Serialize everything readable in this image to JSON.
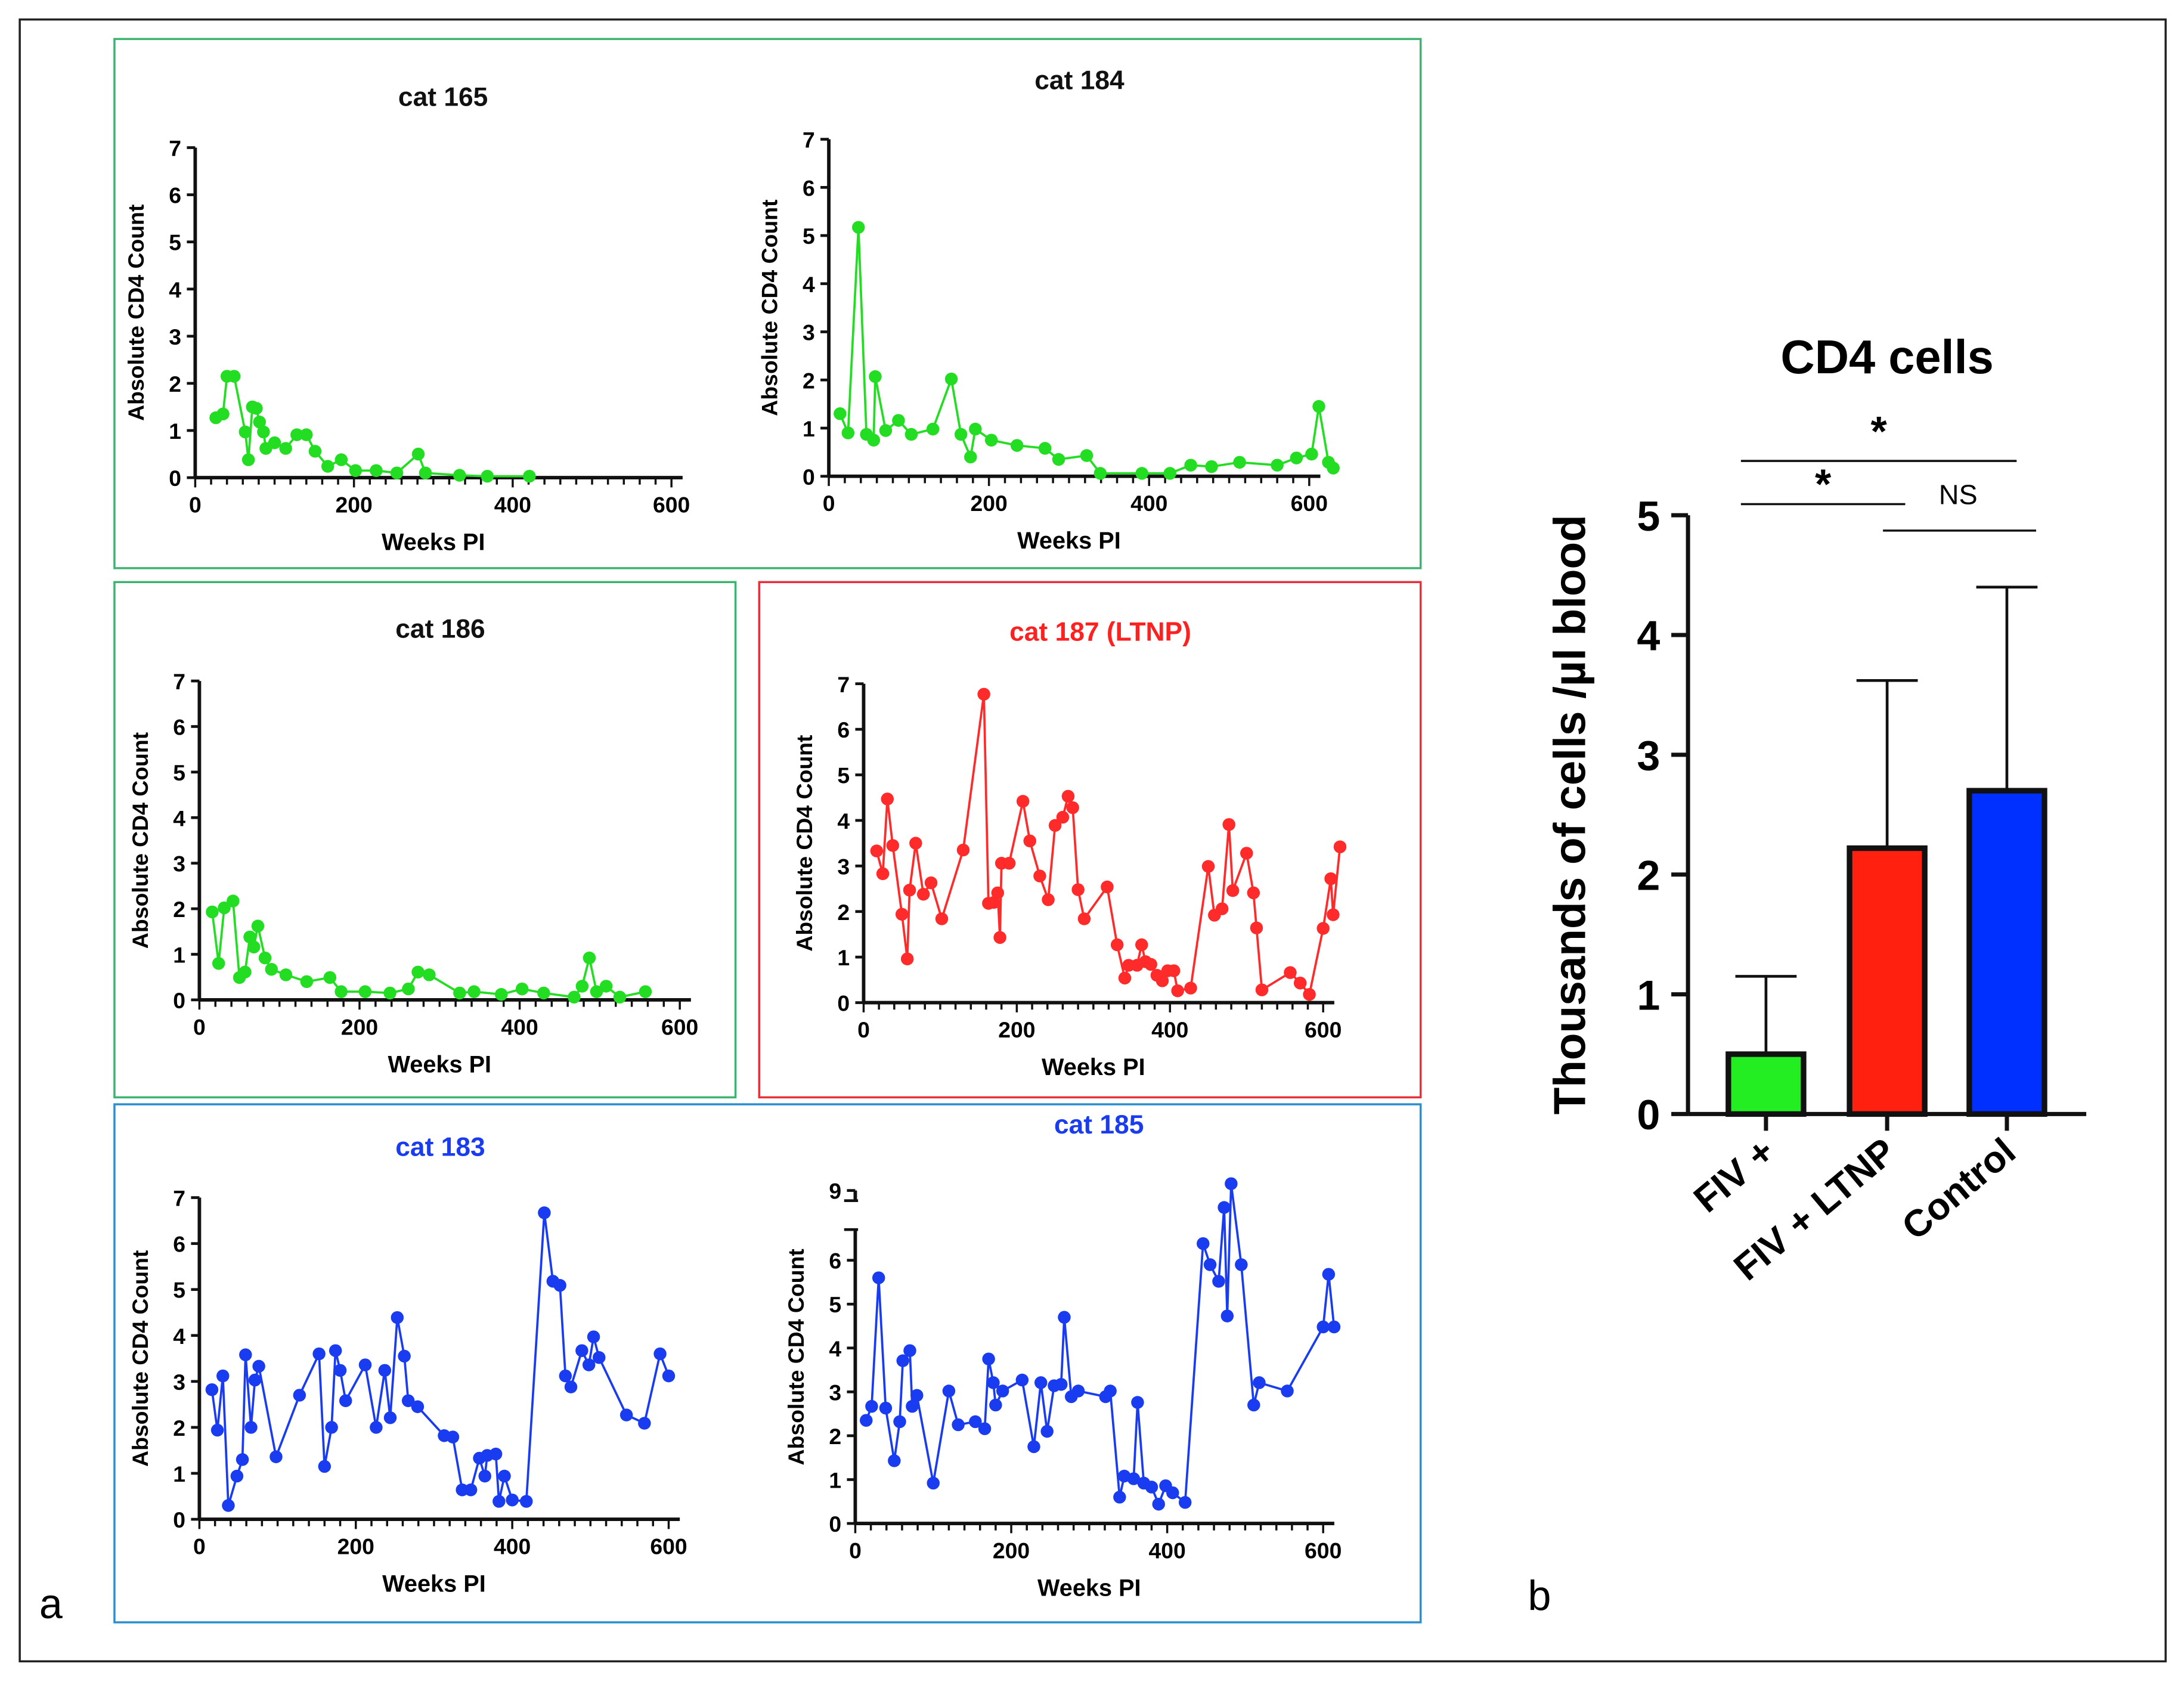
{
  "panel_labels": {
    "a": "a",
    "b": "b"
  },
  "colors": {
    "green_frame": "#3cb371",
    "red_frame": "#e8303a",
    "blue_frame": "#2a8fd0"
  },
  "chart_data": [
    {
      "id": "cat165",
      "type": "line",
      "title": "cat 165",
      "title_color": "#111111",
      "color": "#22dd22",
      "xlabel": "Weeks PI",
      "ylabel": "Absolute CD4 Count",
      "xlim": [
        0,
        600
      ],
      "ylim": [
        0,
        7
      ],
      "xticks": [
        0,
        200,
        400,
        600
      ],
      "yticks": [
        0,
        1,
        2,
        3,
        4,
        5,
        6,
        7
      ],
      "points": [
        [
          26,
          1.27
        ],
        [
          35,
          1.35
        ],
        [
          40,
          2.15
        ],
        [
          49,
          2.15
        ],
        [
          63,
          0.97
        ],
        [
          67,
          0.38
        ],
        [
          72,
          1.5
        ],
        [
          77,
          1.47
        ],
        [
          81,
          1.18
        ],
        [
          86,
          0.97
        ],
        [
          89,
          0.62
        ],
        [
          100,
          0.74
        ],
        [
          114,
          0.62
        ],
        [
          128,
          0.91
        ],
        [
          140,
          0.91
        ],
        [
          151,
          0.56
        ],
        [
          167,
          0.24
        ],
        [
          184,
          0.38
        ],
        [
          202,
          0.15
        ],
        [
          228,
          0.15
        ],
        [
          254,
          0.1
        ],
        [
          281,
          0.5
        ],
        [
          290,
          0.1
        ],
        [
          333,
          0.05
        ],
        [
          368,
          0.03
        ],
        [
          421,
          0.03
        ]
      ]
    },
    {
      "id": "cat184",
      "type": "line",
      "title": "cat 184",
      "title_color": "#111111",
      "color": "#22dd22",
      "xlabel": "Weeks PI",
      "ylabel": "Absolute CD4 Count",
      "xlim": [
        0,
        600
      ],
      "ylim": [
        0,
        7
      ],
      "xticks": [
        0,
        200,
        400,
        600
      ],
      "yticks": [
        0,
        1,
        2,
        3,
        4,
        5,
        6,
        7
      ],
      "points": [
        [
          14,
          1.3
        ],
        [
          24,
          0.9
        ],
        [
          37,
          5.17
        ],
        [
          47,
          0.87
        ],
        [
          56,
          0.75
        ],
        [
          58,
          2.07
        ],
        [
          71,
          0.95
        ],
        [
          87,
          1.16
        ],
        [
          103,
          0.87
        ],
        [
          130,
          0.98
        ],
        [
          153,
          2.02
        ],
        [
          165,
          0.87
        ],
        [
          177,
          0.4
        ],
        [
          183,
          0.98
        ],
        [
          203,
          0.75
        ],
        [
          235,
          0.64
        ],
        [
          270,
          0.58
        ],
        [
          287,
          0.35
        ],
        [
          322,
          0.43
        ],
        [
          339,
          0.06
        ],
        [
          391,
          0.06
        ],
        [
          426,
          0.06
        ],
        [
          452,
          0.23
        ],
        [
          478,
          0.2
        ],
        [
          513,
          0.29
        ],
        [
          560,
          0.23
        ],
        [
          584,
          0.38
        ],
        [
          603,
          0.46
        ],
        [
          612,
          1.45
        ],
        [
          624,
          0.29
        ],
        [
          630,
          0.17
        ]
      ]
    },
    {
      "id": "cat186",
      "type": "line",
      "title": "cat 186",
      "title_color": "#111111",
      "color": "#22dd22",
      "xlabel": "Weeks PI",
      "ylabel": "Absolute CD4 Count",
      "xlim": [
        0,
        600
      ],
      "ylim": [
        0,
        7
      ],
      "xticks": [
        0,
        200,
        400,
        600
      ],
      "yticks": [
        0,
        1,
        2,
        3,
        4,
        5,
        6,
        7
      ],
      "points": [
        [
          16,
          1.93
        ],
        [
          24,
          0.8
        ],
        [
          31,
          2.02
        ],
        [
          42,
          2.17
        ],
        [
          50,
          0.49
        ],
        [
          57,
          0.61
        ],
        [
          63,
          1.38
        ],
        [
          68,
          1.16
        ],
        [
          73,
          1.62
        ],
        [
          82,
          0.92
        ],
        [
          90,
          0.67
        ],
        [
          108,
          0.55
        ],
        [
          134,
          0.4
        ],
        [
          163,
          0.49
        ],
        [
          177,
          0.18
        ],
        [
          207,
          0.18
        ],
        [
          238,
          0.15
        ],
        [
          261,
          0.24
        ],
        [
          273,
          0.61
        ],
        [
          287,
          0.55
        ],
        [
          325,
          0.15
        ],
        [
          343,
          0.18
        ],
        [
          377,
          0.12
        ],
        [
          403,
          0.24
        ],
        [
          430,
          0.15
        ],
        [
          468,
          0.06
        ],
        [
          478,
          0.3
        ],
        [
          487,
          0.92
        ],
        [
          496,
          0.18
        ],
        [
          508,
          0.3
        ],
        [
          525,
          0.06
        ],
        [
          557,
          0.18
        ]
      ]
    },
    {
      "id": "cat187",
      "type": "line",
      "title": "cat 187 (LTNP)",
      "title_color": "#ff2020",
      "color": "#ff2a2a",
      "xlabel": "Weeks PI",
      "ylabel": "Absolute CD4 Count",
      "xlim": [
        0,
        600
      ],
      "ylim": [
        0,
        7
      ],
      "xticks": [
        0,
        200,
        400,
        600
      ],
      "yticks": [
        0,
        1,
        2,
        3,
        4,
        5,
        6,
        7
      ],
      "points": [
        [
          17,
          3.33
        ],
        [
          25,
          2.83
        ],
        [
          31,
          4.47
        ],
        [
          38,
          3.45
        ],
        [
          50,
          1.94
        ],
        [
          57,
          0.96
        ],
        [
          60,
          2.47
        ],
        [
          68,
          3.5
        ],
        [
          78,
          2.38
        ],
        [
          88,
          2.63
        ],
        [
          102,
          1.84
        ],
        [
          130,
          3.35
        ],
        [
          157,
          6.77
        ],
        [
          163,
          2.18
        ],
        [
          170,
          2.2
        ],
        [
          175,
          2.41
        ],
        [
          178,
          1.43
        ],
        [
          180,
          3.06
        ],
        [
          190,
          3.06
        ],
        [
          208,
          4.42
        ],
        [
          217,
          3.55
        ],
        [
          230,
          2.78
        ],
        [
          241,
          2.26
        ],
        [
          250,
          3.89
        ],
        [
          260,
          4.07
        ],
        [
          267,
          4.53
        ],
        [
          273,
          4.28
        ],
        [
          280,
          2.48
        ],
        [
          288,
          1.84
        ],
        [
          318,
          2.54
        ],
        [
          331,
          1.27
        ],
        [
          341,
          0.54
        ],
        [
          346,
          0.82
        ],
        [
          357,
          0.82
        ],
        [
          363,
          1.27
        ],
        [
          368,
          0.9
        ],
        [
          375,
          0.84
        ],
        [
          383,
          0.6
        ],
        [
          390,
          0.48
        ],
        [
          397,
          0.7
        ],
        [
          405,
          0.7
        ],
        [
          410,
          0.26
        ],
        [
          427,
          0.32
        ],
        [
          450,
          2.99
        ],
        [
          458,
          1.92
        ],
        [
          468,
          2.06
        ],
        [
          477,
          3.91
        ],
        [
          482,
          2.46
        ],
        [
          500,
          3.28
        ],
        [
          509,
          2.41
        ],
        [
          513,
          1.64
        ],
        [
          520,
          0.28
        ],
        [
          557,
          0.66
        ],
        [
          570,
          0.43
        ],
        [
          582,
          0.18
        ],
        [
          600,
          1.63
        ],
        [
          610,
          2.72
        ],
        [
          613,
          1.93
        ],
        [
          622,
          3.42
        ]
      ]
    },
    {
      "id": "cat183",
      "type": "line",
      "title": "cat 183",
      "title_color": "#1a3cf0",
      "color": "#1a3cf0",
      "xlabel": "Weeks PI",
      "ylabel": "Absolute CD4 Count",
      "xlim": [
        0,
        600
      ],
      "ylim": [
        0,
        7
      ],
      "xticks": [
        0,
        200,
        400,
        600
      ],
      "yticks": [
        0,
        1,
        2,
        3,
        4,
        5,
        6,
        7
      ],
      "points": [
        [
          16,
          2.82
        ],
        [
          23,
          1.94
        ],
        [
          30,
          3.12
        ],
        [
          37,
          0.3
        ],
        [
          48,
          0.94
        ],
        [
          55,
          1.3
        ],
        [
          59,
          3.58
        ],
        [
          66,
          2.0
        ],
        [
          71,
          3.03
        ],
        [
          76,
          3.33
        ],
        [
          98,
          1.36
        ],
        [
          128,
          2.7
        ],
        [
          153,
          3.6
        ],
        [
          160,
          1.15
        ],
        [
          169,
          2.0
        ],
        [
          174,
          3.67
        ],
        [
          180,
          3.24
        ],
        [
          187,
          2.58
        ],
        [
          212,
          3.36
        ],
        [
          226,
          2.0
        ],
        [
          237,
          3.24
        ],
        [
          244,
          2.21
        ],
        [
          253,
          4.39
        ],
        [
          262,
          3.55
        ],
        [
          267,
          2.58
        ],
        [
          279,
          2.45
        ],
        [
          313,
          1.82
        ],
        [
          324,
          1.79
        ],
        [
          336,
          0.64
        ],
        [
          347,
          0.64
        ],
        [
          358,
          1.33
        ],
        [
          365,
          0.94
        ],
        [
          368,
          1.39
        ],
        [
          379,
          1.42
        ],
        [
          383,
          0.39
        ],
        [
          390,
          0.94
        ],
        [
          400,
          0.42
        ],
        [
          418,
          0.39
        ],
        [
          441,
          6.67
        ],
        [
          452,
          5.18
        ],
        [
          461,
          5.09
        ],
        [
          468,
          3.12
        ],
        [
          475,
          2.88
        ],
        [
          489,
          3.67
        ],
        [
          498,
          3.36
        ],
        [
          504,
          3.97
        ],
        [
          511,
          3.52
        ],
        [
          546,
          2.27
        ],
        [
          569,
          2.09
        ],
        [
          589,
          3.6
        ],
        [
          600,
          3.12
        ]
      ]
    },
    {
      "id": "cat185",
      "type": "line",
      "title": "cat 185",
      "title_color": "#1a3cf0",
      "color": "#1a3cf0",
      "xlabel": "Weeks PI",
      "ylabel": "Absolute CD4 Count",
      "xlim": [
        0,
        600
      ],
      "ylim": [
        0,
        9.5
      ],
      "y_axis_break": true,
      "xticks": [
        0,
        200,
        400,
        600
      ],
      "yticks": [
        0,
        1,
        2,
        3,
        4,
        5,
        6,
        9
      ],
      "points": [
        [
          14,
          2.35
        ],
        [
          21,
          2.67
        ],
        [
          30,
          5.6
        ],
        [
          39,
          2.63
        ],
        [
          50,
          1.43
        ],
        [
          57,
          2.32
        ],
        [
          61,
          3.71
        ],
        [
          70,
          3.94
        ],
        [
          73,
          2.67
        ],
        [
          79,
          2.92
        ],
        [
          100,
          0.92
        ],
        [
          120,
          3.02
        ],
        [
          132,
          2.25
        ],
        [
          154,
          2.32
        ],
        [
          166,
          2.16
        ],
        [
          171,
          3.75
        ],
        [
          177,
          3.21
        ],
        [
          180,
          2.7
        ],
        [
          189,
          3.02
        ],
        [
          214,
          3.27
        ],
        [
          229,
          1.75
        ],
        [
          238,
          3.21
        ],
        [
          246,
          2.1
        ],
        [
          255,
          3.14
        ],
        [
          264,
          3.17
        ],
        [
          268,
          4.7
        ],
        [
          277,
          2.89
        ],
        [
          286,
          3.02
        ],
        [
          321,
          2.89
        ],
        [
          327,
          3.02
        ],
        [
          339,
          0.6
        ],
        [
          345,
          1.08
        ],
        [
          357,
          1.02
        ],
        [
          362,
          2.76
        ],
        [
          370,
          0.92
        ],
        [
          380,
          0.83
        ],
        [
          389,
          0.44
        ],
        [
          398,
          0.86
        ],
        [
          407,
          0.7
        ],
        [
          423,
          0.48
        ],
        [
          446,
          6.38
        ],
        [
          455,
          5.9
        ],
        [
          466,
          5.52
        ],
        [
          473,
          8.0
        ],
        [
          477,
          4.73
        ],
        [
          482,
          9.4
        ],
        [
          495,
          5.9
        ],
        [
          511,
          2.7
        ],
        [
          518,
          3.21
        ],
        [
          554,
          3.02
        ],
        [
          600,
          4.48
        ],
        [
          607,
          5.68
        ],
        [
          614,
          4.48
        ]
      ]
    },
    {
      "id": "cd4bar",
      "type": "bar",
      "title": "CD4 cells",
      "ylabel": "Thousands of cells /µl blood",
      "ylim": [
        0,
        5
      ],
      "yticks": [
        0,
        1,
        2,
        3,
        4,
        5
      ],
      "categories": [
        "FIV +",
        "FIV + LTNP",
        "Control"
      ],
      "values": [
        0.5,
        2.22,
        2.7
      ],
      "error_upper": [
        1.15,
        3.62,
        4.4
      ],
      "colors": [
        "#22ee22",
        "#ff2010",
        "#0030ff"
      ],
      "significance": [
        {
          "from": 0,
          "to": 1,
          "label": "*"
        },
        {
          "from": 0,
          "to": 2,
          "label": "*"
        },
        {
          "from": 1,
          "to": 2,
          "label": "NS"
        }
      ]
    }
  ]
}
